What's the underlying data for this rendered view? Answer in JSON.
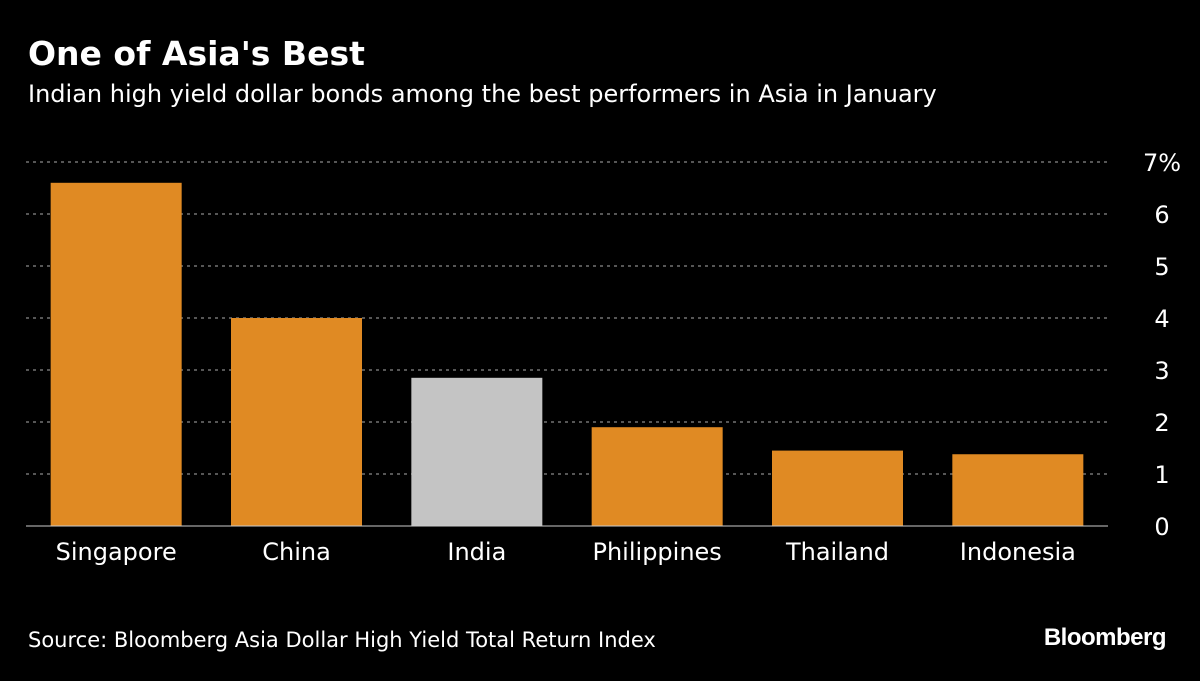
{
  "chart_data": {
    "type": "bar",
    "title": "One of Asia's Best",
    "subtitle": "Indian high yield dollar bonds among the best performers in Asia in January",
    "categories": [
      "Singapore",
      "China",
      "India",
      "Philippines",
      "Thailand",
      "Indonesia"
    ],
    "values": [
      6.6,
      4.0,
      2.85,
      1.9,
      1.45,
      1.38
    ],
    "highlight": "India",
    "ylim": [
      0,
      7
    ],
    "yticks": [
      "0",
      "1",
      "2",
      "3",
      "4",
      "5",
      "6",
      "7%"
    ],
    "xlabel": "",
    "ylabel": "",
    "grid": true
  },
  "colors": {
    "background": "#000000",
    "bar": "#e08a23",
    "highlight_bar": "#c4c4c4",
    "grid": "#8a8a8a",
    "text": "#ffffff",
    "baseline": "#cccccc"
  },
  "footer": {
    "source": "Source: Bloomberg Asia Dollar High Yield Total Return Index",
    "brand": "Bloomberg"
  }
}
